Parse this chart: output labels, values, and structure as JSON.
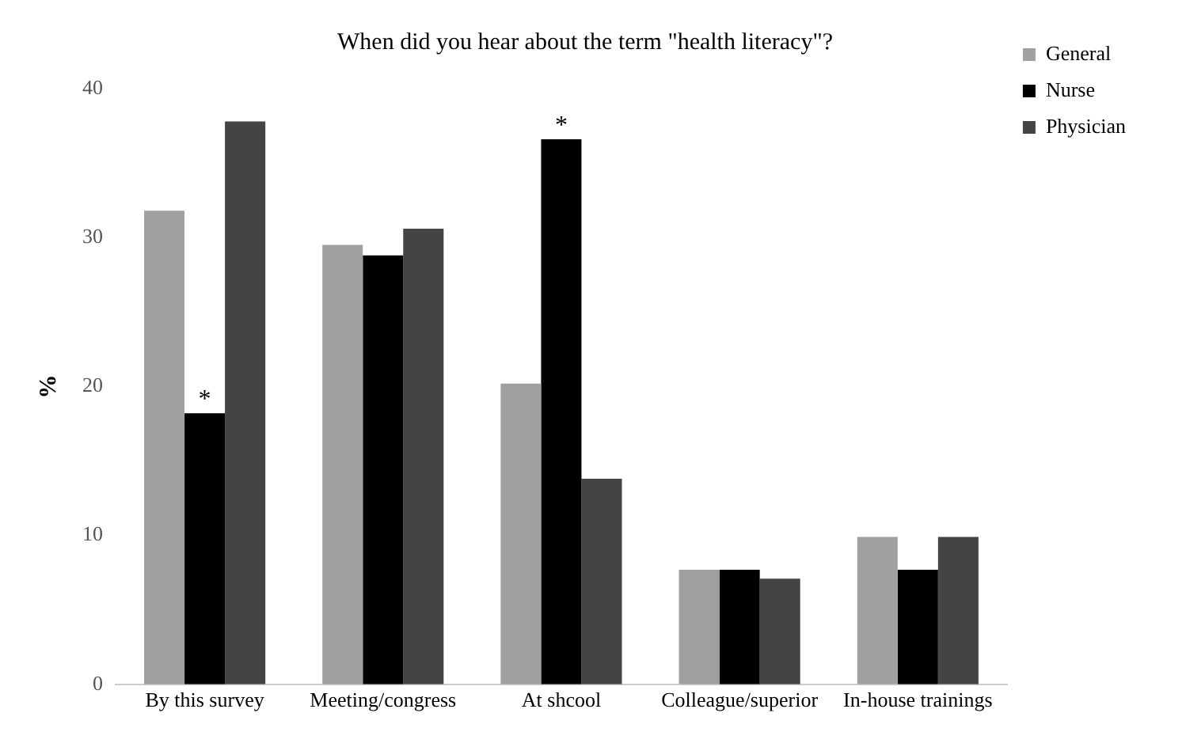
{
  "chart_data": {
    "type": "bar",
    "title": "When did you hear about the term \"health literacy\"?",
    "ylabel": "%",
    "categories": [
      "By this survey",
      "Meeting/congress",
      "At shcool",
      "Colleague/superior",
      "In-house trainings"
    ],
    "series": [
      {
        "name": "General",
        "color": "#a0a0a0",
        "values": [
          31.8,
          29.5,
          20.2,
          7.7,
          9.9
        ]
      },
      {
        "name": "Nurse",
        "color": "#000000",
        "values": [
          18.2,
          28.8,
          36.6,
          7.7,
          7.7
        ]
      },
      {
        "name": "Physician",
        "color": "#444444",
        "values": [
          37.8,
          30.6,
          13.8,
          7.1,
          9.9
        ]
      }
    ],
    "ylim": [
      0,
      40
    ],
    "yticks": [
      0,
      10,
      20,
      30,
      40
    ],
    "grid": false,
    "legend": "top right",
    "annotations": [
      {
        "text": "*",
        "x": "By this survey",
        "y": 18.2
      },
      {
        "text": "*",
        "x": "At shcool",
        "y": 36.6
      }
    ]
  }
}
